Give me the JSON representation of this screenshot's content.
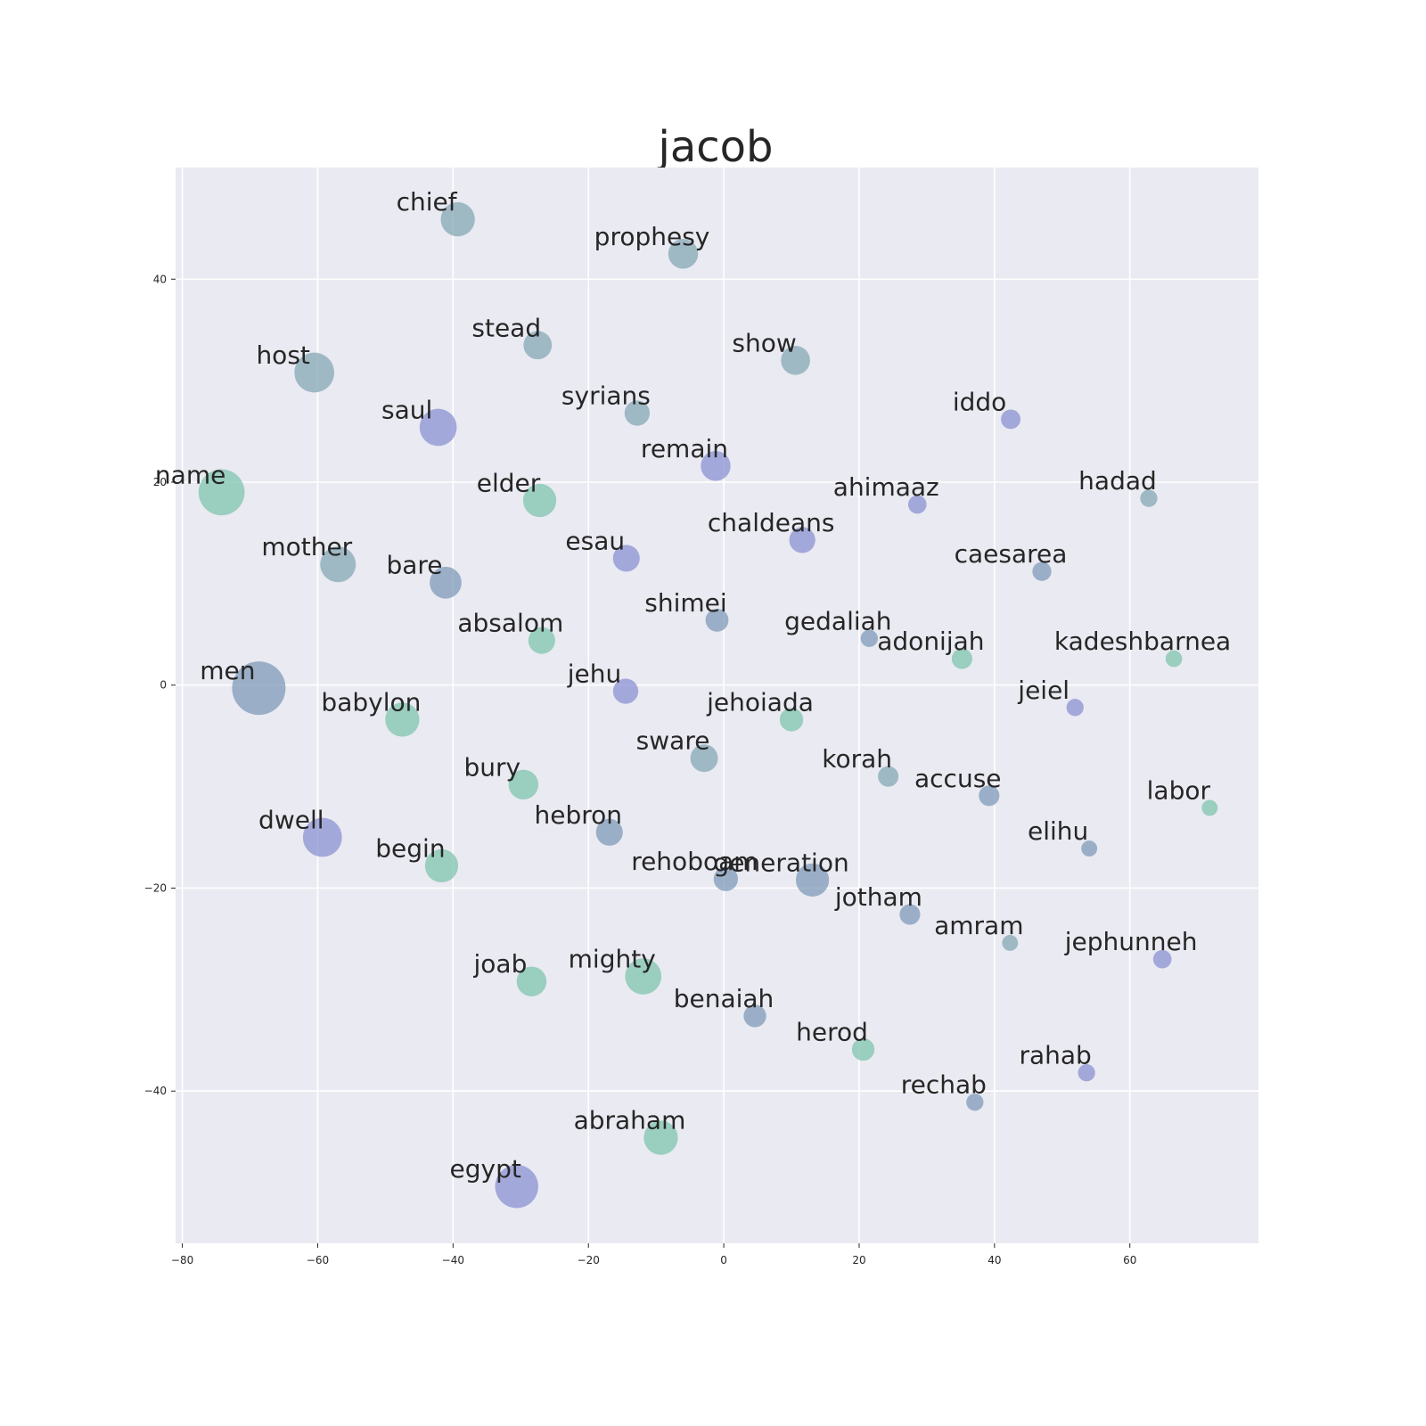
{
  "chart_data": {
    "type": "scatter",
    "title": "jacob",
    "xlabel": "",
    "ylabel": "",
    "xlim": [
      -81,
      79
    ],
    "ylim": [
      -55,
      51
    ],
    "xticks": [
      -80,
      -60,
      -40,
      -20,
      0,
      20,
      40,
      60
    ],
    "yticks": [
      -40,
      -20,
      0,
      20,
      40
    ],
    "xtick_labels": [
      "−80",
      "−60",
      "−40",
      "−20",
      "0",
      "20",
      "40",
      "60"
    ],
    "ytick_labels": [
      "−40",
      "−20",
      "0",
      "20",
      "40"
    ],
    "grid": true,
    "background": "#eaeaf2",
    "colors": {
      "teal": "#7fc4ad",
      "slate": "#7f9bb8",
      "periwinkle": "#8b92d1",
      "grayteal": "#86a8b4"
    },
    "points": [
      {
        "label": "chief",
        "x": -39.3,
        "y": 45.9,
        "size": 0.55,
        "color": "grayteal"
      },
      {
        "label": "prophesy",
        "x": -6.0,
        "y": 42.5,
        "size": 0.42,
        "color": "grayteal"
      },
      {
        "label": "stead",
        "x": -27.5,
        "y": 33.5,
        "size": 0.38,
        "color": "grayteal"
      },
      {
        "label": "show",
        "x": 10.6,
        "y": 32.0,
        "size": 0.4,
        "color": "grayteal"
      },
      {
        "label": "host",
        "x": -60.5,
        "y": 30.8,
        "size": 0.75,
        "color": "grayteal"
      },
      {
        "label": "syrians",
        "x": -12.8,
        "y": 26.8,
        "size": 0.3,
        "color": "grayteal"
      },
      {
        "label": "iddo",
        "x": 42.4,
        "y": 26.2,
        "size": 0.18,
        "color": "periwinkle"
      },
      {
        "label": "saul",
        "x": -42.2,
        "y": 25.4,
        "size": 0.65,
        "color": "periwinkle"
      },
      {
        "label": "remain",
        "x": -1.2,
        "y": 21.6,
        "size": 0.42,
        "color": "periwinkle"
      },
      {
        "label": "name",
        "x": -74.2,
        "y": 19.0,
        "size": 1.0,
        "color": "teal"
      },
      {
        "label": "elder",
        "x": -27.2,
        "y": 18.2,
        "size": 0.52,
        "color": "teal"
      },
      {
        "label": "ahimaaz",
        "x": 28.6,
        "y": 17.8,
        "size": 0.16,
        "color": "periwinkle"
      },
      {
        "label": "hadad",
        "x": 62.8,
        "y": 18.4,
        "size": 0.14,
        "color": "grayteal"
      },
      {
        "label": "chaldeans",
        "x": 11.6,
        "y": 14.3,
        "size": 0.32,
        "color": "periwinkle"
      },
      {
        "label": "esau",
        "x": -14.4,
        "y": 12.5,
        "size": 0.34,
        "color": "periwinkle"
      },
      {
        "label": "mother",
        "x": -57.0,
        "y": 11.9,
        "size": 0.6,
        "color": "grayteal"
      },
      {
        "label": "caesarea",
        "x": 47.0,
        "y": 11.2,
        "size": 0.17,
        "color": "slate"
      },
      {
        "label": "bare",
        "x": -41.1,
        "y": 10.1,
        "size": 0.48,
        "color": "slate"
      },
      {
        "label": "shimei",
        "x": -1.0,
        "y": 6.4,
        "size": 0.25,
        "color": "slate"
      },
      {
        "label": "absalom",
        "x": -26.9,
        "y": 4.4,
        "size": 0.34,
        "color": "teal"
      },
      {
        "label": "gedaliah",
        "x": 21.5,
        "y": 4.6,
        "size": 0.14,
        "color": "slate"
      },
      {
        "label": "adonijah",
        "x": 35.2,
        "y": 2.6,
        "size": 0.2,
        "color": "teal"
      },
      {
        "label": "kadeshbarnea",
        "x": 66.5,
        "y": 2.6,
        "size": 0.13,
        "color": "teal"
      },
      {
        "label": "men",
        "x": -68.7,
        "y": -0.3,
        "size": 1.35,
        "color": "slate"
      },
      {
        "label": "jehu",
        "x": -14.5,
        "y": -0.6,
        "size": 0.3,
        "color": "periwinkle"
      },
      {
        "label": "jeiel",
        "x": 51.9,
        "y": -2.2,
        "size": 0.14,
        "color": "periwinkle"
      },
      {
        "label": "babylon",
        "x": -47.5,
        "y": -3.4,
        "size": 0.55,
        "color": "teal"
      },
      {
        "label": "jehoiada",
        "x": 10.0,
        "y": -3.4,
        "size": 0.26,
        "color": "teal"
      },
      {
        "label": "sware",
        "x": -2.9,
        "y": -7.2,
        "size": 0.36,
        "color": "grayteal"
      },
      {
        "label": "korah",
        "x": 24.3,
        "y": -9.0,
        "size": 0.2,
        "color": "grayteal"
      },
      {
        "label": "accuse",
        "x": 39.2,
        "y": -10.9,
        "size": 0.2,
        "color": "slate"
      },
      {
        "label": "bury",
        "x": -29.6,
        "y": -9.8,
        "size": 0.42,
        "color": "teal"
      },
      {
        "label": "labor",
        "x": 71.8,
        "y": -12.1,
        "size": 0.12,
        "color": "teal"
      },
      {
        "label": "hebron",
        "x": -16.9,
        "y": -14.5,
        "size": 0.34,
        "color": "slate"
      },
      {
        "label": "dwell",
        "x": -59.3,
        "y": -15.0,
        "size": 0.72,
        "color": "periwinkle"
      },
      {
        "label": "elihu",
        "x": 54.0,
        "y": -16.1,
        "size": 0.12,
        "color": "slate"
      },
      {
        "label": "begin",
        "x": -41.7,
        "y": -17.8,
        "size": 0.52,
        "color": "teal"
      },
      {
        "label": "rehoboam",
        "x": 0.3,
        "y": -19.1,
        "size": 0.28,
        "color": "slate"
      },
      {
        "label": "generation",
        "x": 13.1,
        "y": -19.2,
        "size": 0.52,
        "color": "slate"
      },
      {
        "label": "jotham",
        "x": 27.5,
        "y": -22.6,
        "size": 0.2,
        "color": "slate"
      },
      {
        "label": "amram",
        "x": 42.3,
        "y": -25.4,
        "size": 0.12,
        "color": "grayteal"
      },
      {
        "label": "jephunneh",
        "x": 64.8,
        "y": -27.0,
        "size": 0.16,
        "color": "periwinkle"
      },
      {
        "label": "mighty",
        "x": -11.9,
        "y": -28.7,
        "size": 0.62,
        "color": "teal"
      },
      {
        "label": "joab",
        "x": -28.4,
        "y": -29.2,
        "size": 0.42,
        "color": "teal"
      },
      {
        "label": "benaiah",
        "x": 4.6,
        "y": -32.6,
        "size": 0.24,
        "color": "slate"
      },
      {
        "label": "herod",
        "x": 20.6,
        "y": -35.9,
        "size": 0.24,
        "color": "teal"
      },
      {
        "label": "rahab",
        "x": 53.6,
        "y": -38.2,
        "size": 0.14,
        "color": "periwinkle"
      },
      {
        "label": "rechab",
        "x": 37.1,
        "y": -41.1,
        "size": 0.14,
        "color": "slate"
      },
      {
        "label": "abraham",
        "x": -9.3,
        "y": -44.6,
        "size": 0.55,
        "color": "teal"
      },
      {
        "label": "egypt",
        "x": -30.6,
        "y": -49.4,
        "size": 0.88,
        "color": "periwinkle"
      }
    ]
  }
}
